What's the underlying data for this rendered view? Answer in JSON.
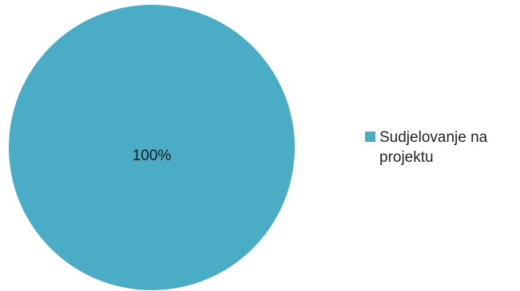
{
  "chart_data": {
    "type": "pie",
    "title": "",
    "slices": [
      {
        "label": "Sudjelovanje na projektu",
        "value": 100,
        "display": "100%",
        "color": "#4bacc6"
      }
    ],
    "legend_position": "right",
    "data_labels": "percent-inside"
  }
}
